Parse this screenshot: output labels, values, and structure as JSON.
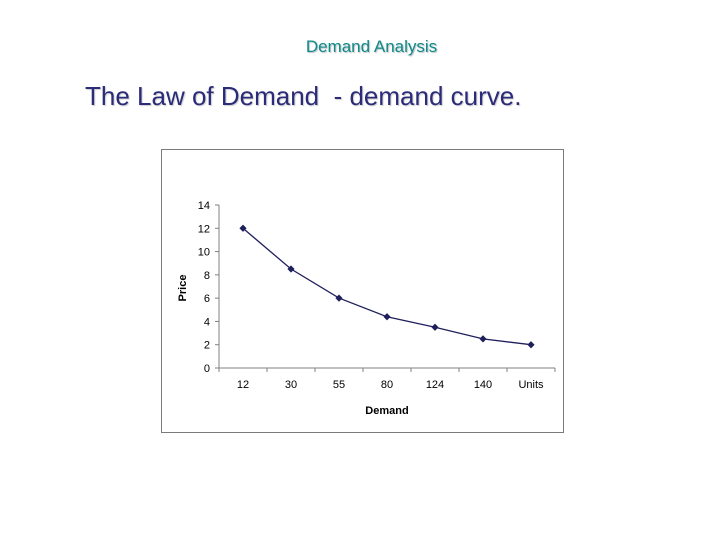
{
  "slide": {
    "heading": "Demand Analysis",
    "title": "The Law of Demand  - demand curve."
  },
  "colors": {
    "heading": "#0e8a8a",
    "title": "#2b2b7a",
    "series": "#1f1f5c"
  },
  "chart_data": {
    "type": "line",
    "categories": [
      "12",
      "30",
      "55",
      "80",
      "124",
      "140",
      "Units"
    ],
    "series": [
      {
        "values": [
          12,
          8.5,
          6,
          4.4,
          3.5,
          2.5,
          2
        ]
      }
    ],
    "xlabel": "Demand",
    "ylabel": "Price",
    "ylim": [
      0,
      14
    ],
    "yticks": [
      0,
      2,
      4,
      6,
      8,
      10,
      12,
      14
    ],
    "grid": false,
    "legend": "none",
    "marker": "diamond"
  }
}
